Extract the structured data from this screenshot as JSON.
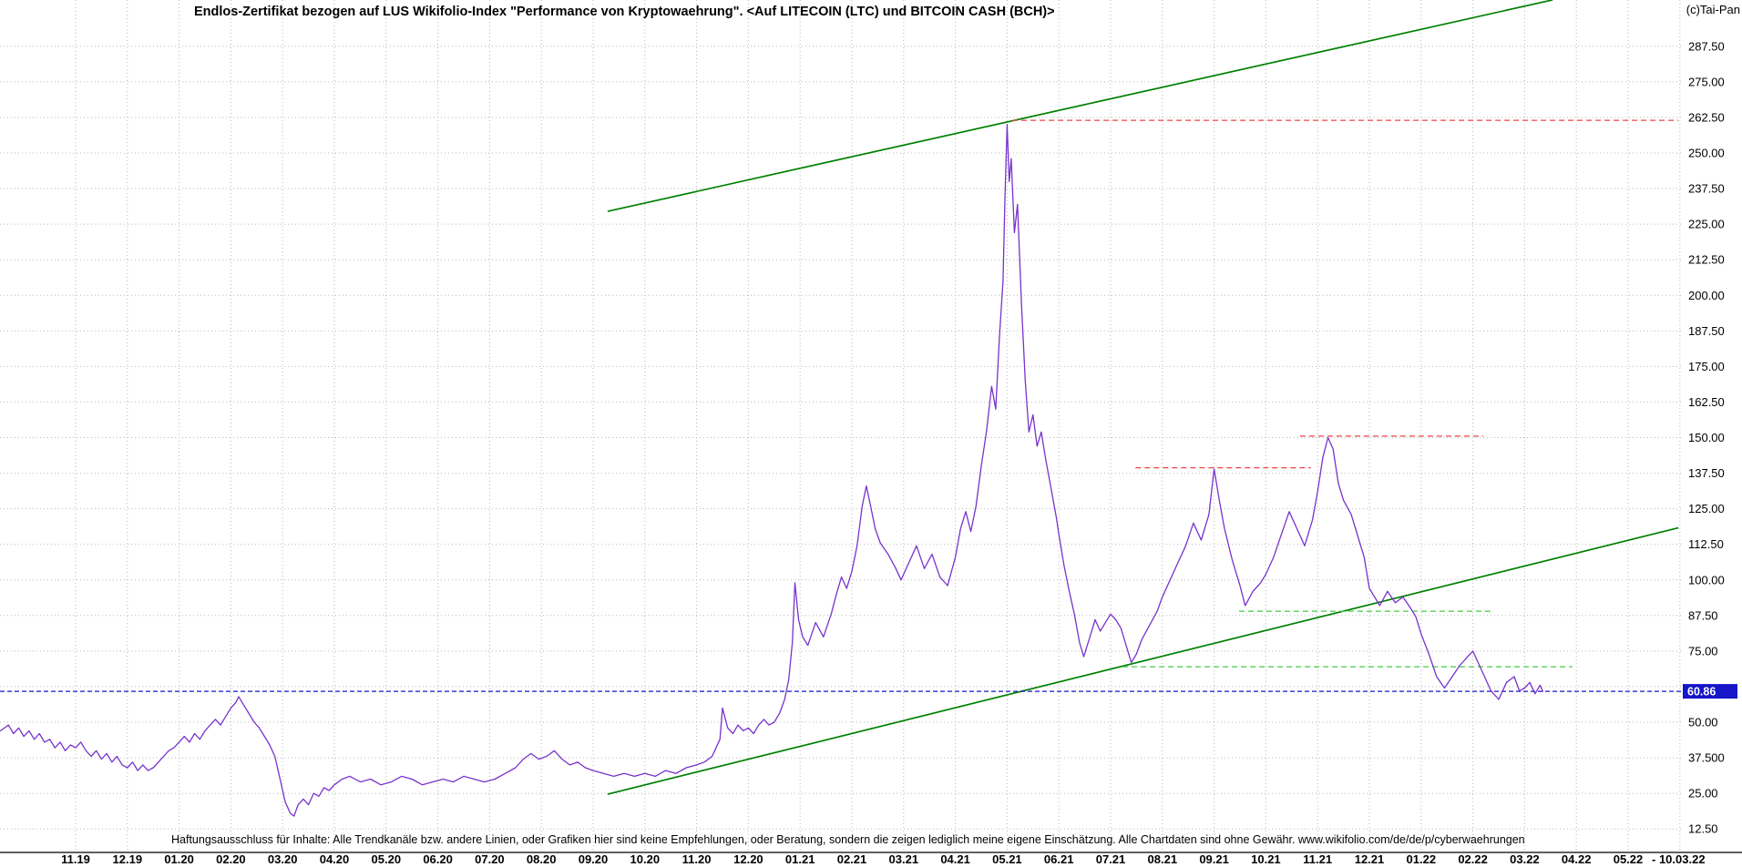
{
  "window": {
    "title": "Endlos-Zertifikat bezogen auf LUS Wikifolio-Index \"Performance von Kryptowaehrung\". <Auf LITECOIN (LTC) und BITCOIN CASH (BCH)>",
    "watermark": "(c)Tai-Pan"
  },
  "footer": {
    "disclaimer": "Haftungsausschluss für Inhalte: Alle Trendkanäle bzw. andere Linien, oder Grafiken hier sind keine Empfehlungen, oder Beratung, sondern die zeigen lediglich meine eigene Einschätzung. Alle Chartdaten sind ohne Gewähr.  www.wikifolio.com/de/de/p/cyberwaehrungen"
  },
  "chart_data": {
    "type": "line",
    "title": "Endlos-Zertifikat bezogen auf LUS Wikifolio-Index \"Performance von Kryptowaehrung\". <Auf LITECOIN (LTC) und BITCOIN CASH (BCH)>",
    "xlabel": "",
    "ylabel": "",
    "x_unit": "months since tick 11.19 (MM.YY)",
    "ylim": [
      4,
      304
    ],
    "grid": true,
    "x_ticks": [
      "11.19",
      "12.19",
      "01.20",
      "02.20",
      "03.20",
      "04.20",
      "05.20",
      "06.20",
      "07.20",
      "08.20",
      "09.20",
      "10.20",
      "11.20",
      "12.20",
      "01.21",
      "02.21",
      "03.21",
      "04.21",
      "05.21",
      "06.21",
      "07.21",
      "08.21",
      "09.21",
      "10.21",
      "11.21",
      "12.21",
      "01.22",
      "02.22",
      "03.22",
      "04.22",
      "05.22"
    ],
    "x_end_label": "- 10.03.22",
    "y_ticks": [
      {
        "value": 287.5,
        "label": "287.50"
      },
      {
        "value": 275.0,
        "label": "275.00"
      },
      {
        "value": 262.5,
        "label": "262.50"
      },
      {
        "value": 250.0,
        "label": "250.00"
      },
      {
        "value": 237.5,
        "label": "237.50"
      },
      {
        "value": 225.0,
        "label": "225.00"
      },
      {
        "value": 212.5,
        "label": "212.50"
      },
      {
        "value": 200.0,
        "label": "200.00"
      },
      {
        "value": 187.5,
        "label": "187.50"
      },
      {
        "value": 175.0,
        "label": "175.00"
      },
      {
        "value": 162.5,
        "label": "162.50"
      },
      {
        "value": 150.0,
        "label": "150.00"
      },
      {
        "value": 137.5,
        "label": "137.50"
      },
      {
        "value": 125.0,
        "label": "125.00"
      },
      {
        "value": 112.5,
        "label": "112.50"
      },
      {
        "value": 100.0,
        "label": "100.00"
      },
      {
        "value": 87.5,
        "label": "87.50"
      },
      {
        "value": 75.0,
        "label": "75.00"
      },
      {
        "value": 62.5,
        "label": ""
      },
      {
        "value": 50.0,
        "label": "50.00"
      },
      {
        "value": 37.5,
        "label": "37.500"
      },
      {
        "value": 25.0,
        "label": "25.00"
      },
      {
        "value": 12.5,
        "label": "12.50"
      }
    ],
    "last_price": 60.86,
    "last_price_label": "60.86",
    "last_price_color": "#1616c8",
    "series": [
      {
        "name": "Endlos-Zertifikat Kurs",
        "color": "#7733cc",
        "points": [
          [
            -1.45,
            47
          ],
          [
            -1.3,
            49
          ],
          [
            -1.2,
            46
          ],
          [
            -1.1,
            48
          ],
          [
            -1.0,
            45
          ],
          [
            -0.9,
            47
          ],
          [
            -0.8,
            44
          ],
          [
            -0.7,
            46
          ],
          [
            -0.6,
            43
          ],
          [
            -0.5,
            44
          ],
          [
            -0.4,
            41
          ],
          [
            -0.3,
            43
          ],
          [
            -0.2,
            40
          ],
          [
            -0.1,
            42
          ],
          [
            0.0,
            41
          ],
          [
            0.1,
            43
          ],
          [
            0.2,
            40
          ],
          [
            0.3,
            38
          ],
          [
            0.4,
            40
          ],
          [
            0.5,
            37
          ],
          [
            0.6,
            39
          ],
          [
            0.7,
            36
          ],
          [
            0.8,
            38
          ],
          [
            0.9,
            35
          ],
          [
            1.0,
            34
          ],
          [
            1.1,
            36
          ],
          [
            1.2,
            33
          ],
          [
            1.3,
            35
          ],
          [
            1.4,
            33
          ],
          [
            1.5,
            34
          ],
          [
            1.6,
            36
          ],
          [
            1.7,
            38
          ],
          [
            1.8,
            40
          ],
          [
            1.9,
            41
          ],
          [
            2.0,
            43
          ],
          [
            2.1,
            45
          ],
          [
            2.2,
            43
          ],
          [
            2.3,
            46
          ],
          [
            2.4,
            44
          ],
          [
            2.5,
            47
          ],
          [
            2.6,
            49
          ],
          [
            2.7,
            51
          ],
          [
            2.8,
            49
          ],
          [
            2.9,
            52
          ],
          [
            3.0,
            55
          ],
          [
            3.1,
            57
          ],
          [
            3.15,
            59
          ],
          [
            3.25,
            56
          ],
          [
            3.35,
            53
          ],
          [
            3.45,
            50
          ],
          [
            3.55,
            48
          ],
          [
            3.65,
            45
          ],
          [
            3.75,
            42
          ],
          [
            3.85,
            38
          ],
          [
            3.95,
            30
          ],
          [
            4.05,
            22
          ],
          [
            4.15,
            18
          ],
          [
            4.22,
            17
          ],
          [
            4.3,
            21
          ],
          [
            4.4,
            23
          ],
          [
            4.5,
            21
          ],
          [
            4.6,
            25
          ],
          [
            4.7,
            24
          ],
          [
            4.8,
            27
          ],
          [
            4.9,
            26
          ],
          [
            5.0,
            28
          ],
          [
            5.15,
            30
          ],
          [
            5.3,
            31
          ],
          [
            5.5,
            29
          ],
          [
            5.7,
            30
          ],
          [
            5.9,
            28
          ],
          [
            6.1,
            29
          ],
          [
            6.3,
            31
          ],
          [
            6.5,
            30
          ],
          [
            6.7,
            28
          ],
          [
            6.9,
            29
          ],
          [
            7.1,
            30
          ],
          [
            7.3,
            29
          ],
          [
            7.5,
            31
          ],
          [
            7.7,
            30
          ],
          [
            7.9,
            29
          ],
          [
            8.1,
            30
          ],
          [
            8.3,
            32
          ],
          [
            8.5,
            34
          ],
          [
            8.65,
            37
          ],
          [
            8.8,
            39
          ],
          [
            8.95,
            37
          ],
          [
            9.1,
            38
          ],
          [
            9.25,
            40
          ],
          [
            9.4,
            37
          ],
          [
            9.55,
            35
          ],
          [
            9.7,
            36
          ],
          [
            9.85,
            34
          ],
          [
            10.0,
            33
          ],
          [
            10.2,
            32
          ],
          [
            10.4,
            31
          ],
          [
            10.6,
            32
          ],
          [
            10.8,
            31
          ],
          [
            11.0,
            32
          ],
          [
            11.2,
            31
          ],
          [
            11.4,
            33
          ],
          [
            11.6,
            32
          ],
          [
            11.8,
            34
          ],
          [
            12.0,
            35
          ],
          [
            12.15,
            36
          ],
          [
            12.3,
            38
          ],
          [
            12.45,
            44
          ],
          [
            12.5,
            55
          ],
          [
            12.6,
            48
          ],
          [
            12.7,
            46
          ],
          [
            12.8,
            49
          ],
          [
            12.9,
            47
          ],
          [
            13.0,
            48
          ],
          [
            13.1,
            46
          ],
          [
            13.2,
            49
          ],
          [
            13.3,
            51
          ],
          [
            13.4,
            49
          ],
          [
            13.5,
            50
          ],
          [
            13.6,
            53
          ],
          [
            13.7,
            58
          ],
          [
            13.78,
            65
          ],
          [
            13.85,
            78
          ],
          [
            13.9,
            99
          ],
          [
            13.97,
            86
          ],
          [
            14.05,
            80
          ],
          [
            14.15,
            77
          ],
          [
            14.3,
            85
          ],
          [
            14.45,
            80
          ],
          [
            14.6,
            88
          ],
          [
            14.7,
            95
          ],
          [
            14.8,
            101
          ],
          [
            14.9,
            97
          ],
          [
            15.0,
            103
          ],
          [
            15.1,
            112
          ],
          [
            15.2,
            126
          ],
          [
            15.28,
            133
          ],
          [
            15.35,
            127
          ],
          [
            15.45,
            118
          ],
          [
            15.55,
            113
          ],
          [
            15.7,
            109
          ],
          [
            15.85,
            104
          ],
          [
            15.95,
            100
          ],
          [
            16.1,
            106
          ],
          [
            16.25,
            112
          ],
          [
            16.4,
            104
          ],
          [
            16.55,
            109
          ],
          [
            16.7,
            101
          ],
          [
            16.85,
            98
          ],
          [
            17.0,
            108
          ],
          [
            17.1,
            118
          ],
          [
            17.2,
            124
          ],
          [
            17.3,
            117
          ],
          [
            17.4,
            126
          ],
          [
            17.5,
            140
          ],
          [
            17.6,
            152
          ],
          [
            17.7,
            168
          ],
          [
            17.78,
            160
          ],
          [
            17.85,
            185
          ],
          [
            17.92,
            205
          ],
          [
            17.96,
            235
          ],
          [
            18.0,
            260
          ],
          [
            18.04,
            240
          ],
          [
            18.08,
            248
          ],
          [
            18.14,
            222
          ],
          [
            18.2,
            232
          ],
          [
            18.28,
            196
          ],
          [
            18.35,
            170
          ],
          [
            18.42,
            152
          ],
          [
            18.5,
            158
          ],
          [
            18.58,
            147
          ],
          [
            18.66,
            152
          ],
          [
            18.74,
            143
          ],
          [
            18.85,
            132
          ],
          [
            18.95,
            122
          ],
          [
            19.0,
            116
          ],
          [
            19.1,
            105
          ],
          [
            19.2,
            96
          ],
          [
            19.3,
            88
          ],
          [
            19.4,
            78
          ],
          [
            19.48,
            73
          ],
          [
            19.6,
            80
          ],
          [
            19.7,
            86
          ],
          [
            19.8,
            82
          ],
          [
            19.9,
            85
          ],
          [
            20.0,
            88
          ],
          [
            20.1,
            86
          ],
          [
            20.2,
            83
          ],
          [
            20.3,
            77
          ],
          [
            20.4,
            71
          ],
          [
            20.5,
            74
          ],
          [
            20.6,
            79
          ],
          [
            20.75,
            84
          ],
          [
            20.9,
            89
          ],
          [
            21.0,
            94
          ],
          [
            21.15,
            100
          ],
          [
            21.3,
            106
          ],
          [
            21.45,
            112
          ],
          [
            21.6,
            120
          ],
          [
            21.75,
            114
          ],
          [
            21.9,
            123
          ],
          [
            22.0,
            139
          ],
          [
            22.1,
            128
          ],
          [
            22.2,
            118
          ],
          [
            22.35,
            107
          ],
          [
            22.5,
            98
          ],
          [
            22.6,
            91
          ],
          [
            22.75,
            96
          ],
          [
            22.9,
            99
          ],
          [
            23.0,
            102
          ],
          [
            23.15,
            108
          ],
          [
            23.3,
            116
          ],
          [
            23.45,
            124
          ],
          [
            23.6,
            118
          ],
          [
            23.75,
            112
          ],
          [
            23.9,
            121
          ],
          [
            24.0,
            131
          ],
          [
            24.1,
            143
          ],
          [
            24.2,
            150
          ],
          [
            24.3,
            146
          ],
          [
            24.4,
            134
          ],
          [
            24.5,
            128
          ],
          [
            24.65,
            123
          ],
          [
            24.8,
            114
          ],
          [
            24.9,
            108
          ],
          [
            25.0,
            97
          ],
          [
            25.1,
            94
          ],
          [
            25.2,
            91
          ],
          [
            25.35,
            96
          ],
          [
            25.5,
            92
          ],
          [
            25.65,
            94
          ],
          [
            25.8,
            90
          ],
          [
            25.9,
            87
          ],
          [
            26.0,
            81
          ],
          [
            26.15,
            74
          ],
          [
            26.3,
            66
          ],
          [
            26.45,
            62
          ],
          [
            26.6,
            66
          ],
          [
            26.75,
            70
          ],
          [
            26.9,
            73
          ],
          [
            27.0,
            75
          ],
          [
            27.1,
            71
          ],
          [
            27.2,
            67
          ],
          [
            27.35,
            61
          ],
          [
            27.5,
            58
          ],
          [
            27.65,
            64
          ],
          [
            27.8,
            66
          ],
          [
            27.9,
            61
          ],
          [
            28.0,
            62
          ],
          [
            28.1,
            64
          ],
          [
            28.2,
            60
          ],
          [
            28.3,
            63
          ],
          [
            28.35,
            60.86
          ]
        ]
      }
    ],
    "trend_lines": [
      {
        "name": "upper-channel",
        "color": "#008000",
        "from": [
          10.28,
          229.5
        ],
        "to": [
          28.54,
          303.8
        ]
      },
      {
        "name": "lower-channel",
        "color": "#008000",
        "from": [
          10.28,
          24.7
        ],
        "to": [
          30.97,
          118.3
        ]
      }
    ],
    "horizontal_lines": [
      {
        "name": "resistance-261",
        "color": "#ee4444",
        "value": 261.5,
        "from_t": 18.1,
        "to_t": 30.97,
        "style": "dashed"
      },
      {
        "name": "resistance-150",
        "color": "#ee4444",
        "value": 150.5,
        "from_t": 23.66,
        "to_t": 27.2,
        "style": "dashed"
      },
      {
        "name": "resistance-139",
        "color": "#ee4444",
        "value": 139.4,
        "from_t": 20.48,
        "to_t": 23.87,
        "style": "dashed"
      },
      {
        "name": "support-89",
        "color": "#44cc44",
        "value": 89.0,
        "from_t": 22.48,
        "to_t": 27.41,
        "style": "dashed"
      },
      {
        "name": "support-69",
        "color": "#44cc44",
        "value": 69.5,
        "from_t": 20.23,
        "to_t": 28.92,
        "style": "dashed"
      }
    ],
    "legend_position": "none"
  }
}
